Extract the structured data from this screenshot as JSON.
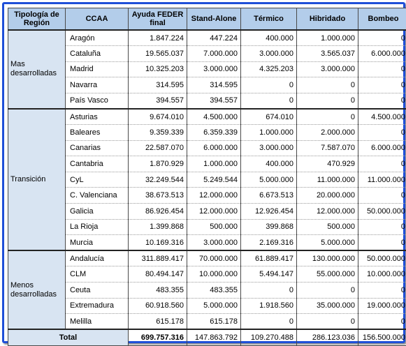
{
  "headers": {
    "region": "Tipología de Región",
    "ccaa": "CCAA",
    "ayuda": "Ayuda FEDER final",
    "standalone": "Stand-Alone",
    "termico": "Térmico",
    "hibridado": "Hibridado",
    "bombeo": "Bombeo"
  },
  "groups": [
    {
      "region": "Mas desarrolladas",
      "rows": [
        {
          "ccaa": "Aragón",
          "ayuda": "1.847.224",
          "standalone": "447.224",
          "termico": "400.000",
          "hibridado": "1.000.000",
          "bombeo": "0"
        },
        {
          "ccaa": "Cataluña",
          "ayuda": "19.565.037",
          "standalone": "7.000.000",
          "termico": "3.000.000",
          "hibridado": "3.565.037",
          "bombeo": "6.000.000"
        },
        {
          "ccaa": "Madrid",
          "ayuda": "10.325.203",
          "standalone": "3.000.000",
          "termico": "4.325.203",
          "hibridado": "3.000.000",
          "bombeo": "0"
        },
        {
          "ccaa": "Navarra",
          "ayuda": "314.595",
          "standalone": "314.595",
          "termico": "0",
          "hibridado": "0",
          "bombeo": "0"
        },
        {
          "ccaa": "País Vasco",
          "ayuda": "394.557",
          "standalone": "394.557",
          "termico": "0",
          "hibridado": "0",
          "bombeo": "0"
        }
      ]
    },
    {
      "region": "Transición",
      "rows": [
        {
          "ccaa": "Asturias",
          "ayuda": "9.674.010",
          "standalone": "4.500.000",
          "termico": "674.010",
          "hibridado": "0",
          "bombeo": "4.500.000"
        },
        {
          "ccaa": "Baleares",
          "ayuda": "9.359.339",
          "standalone": "6.359.339",
          "termico": "1.000.000",
          "hibridado": "2.000.000",
          "bombeo": "0"
        },
        {
          "ccaa": "Canarias",
          "ayuda": "22.587.070",
          "standalone": "6.000.000",
          "termico": "3.000.000",
          "hibridado": "7.587.070",
          "bombeo": "6.000.000"
        },
        {
          "ccaa": "Cantabria",
          "ayuda": "1.870.929",
          "standalone": "1.000.000",
          "termico": "400.000",
          "hibridado": "470.929",
          "bombeo": "0"
        },
        {
          "ccaa": "CyL",
          "ayuda": "32.249.544",
          "standalone": "5.249.544",
          "termico": "5.000.000",
          "hibridado": "11.000.000",
          "bombeo": "11.000.000"
        },
        {
          "ccaa": "C. Valenciana",
          "ayuda": "38.673.513",
          "standalone": "12.000.000",
          "termico": "6.673.513",
          "hibridado": "20.000.000",
          "bombeo": "0"
        },
        {
          "ccaa": "Galicia",
          "ayuda": "86.926.454",
          "standalone": "12.000.000",
          "termico": "12.926.454",
          "hibridado": "12.000.000",
          "bombeo": "50.000.000"
        },
        {
          "ccaa": "La Rioja",
          "ayuda": "1.399.868",
          "standalone": "500.000",
          "termico": "399.868",
          "hibridado": "500.000",
          "bombeo": "0"
        },
        {
          "ccaa": "Murcia",
          "ayuda": "10.169.316",
          "standalone": "3.000.000",
          "termico": "2.169.316",
          "hibridado": "5.000.000",
          "bombeo": "0"
        }
      ]
    },
    {
      "region": "Menos desarrolladas",
      "rows": [
        {
          "ccaa": "Andalucía",
          "ayuda": "311.889.417",
          "standalone": "70.000.000",
          "termico": "61.889.417",
          "hibridado": "130.000.000",
          "bombeo": "50.000.000"
        },
        {
          "ccaa": "CLM",
          "ayuda": "80.494.147",
          "standalone": "10.000.000",
          "termico": "5.494.147",
          "hibridado": "55.000.000",
          "bombeo": "10.000.000"
        },
        {
          "ccaa": "Ceuta",
          "ayuda": "483.355",
          "standalone": "483.355",
          "termico": "0",
          "hibridado": "0",
          "bombeo": "0"
        },
        {
          "ccaa": "Extremadura",
          "ayuda": "60.918.560",
          "standalone": "5.000.000",
          "termico": "1.918.560",
          "hibridado": "35.000.000",
          "bombeo": "19.000.000"
        },
        {
          "ccaa": "Melilla",
          "ayuda": "615.178",
          "standalone": "615.178",
          "termico": "0",
          "hibridado": "0",
          "bombeo": "0"
        }
      ]
    }
  ],
  "total": {
    "label": "Total",
    "ayuda": "699.757.316",
    "standalone": "147.863.792",
    "termico": "109.270.488",
    "hibridado": "286.123.036",
    "bombeo": "156.500.000"
  }
}
